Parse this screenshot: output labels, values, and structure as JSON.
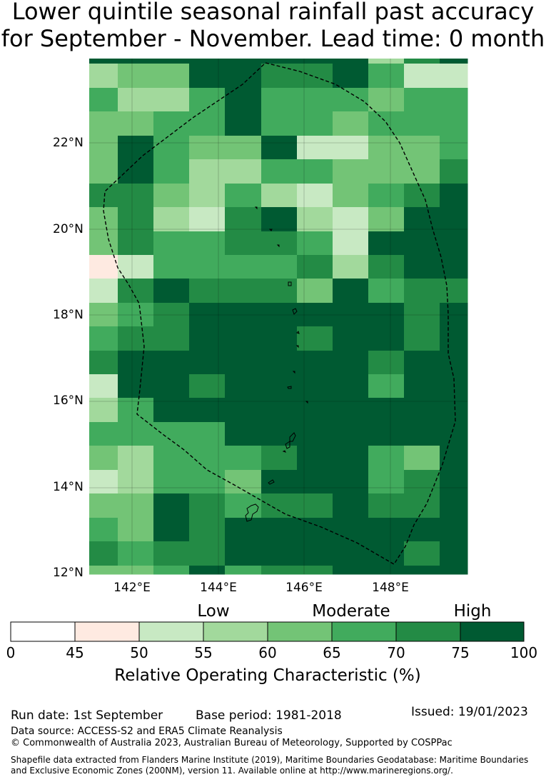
{
  "title": {
    "line1": "Lower quintile seasonal rainfall past accuracy",
    "line2": "for September - November. Lead time: 0 month"
  },
  "map": {
    "lon_range": [
      141.0,
      149.6
    ],
    "lat_range": [
      12.0,
      24.0
    ],
    "lat_ticks": [
      "22°N",
      "20°N",
      "18°N",
      "16°N",
      "14°N",
      "12°N"
    ],
    "lon_ticks": [
      "142°E",
      "144°E",
      "146°E",
      "148°E"
    ],
    "grid": true,
    "eez_boundary": "dashed"
  },
  "colorbar": {
    "categories": [
      "Low",
      "Moderate",
      "High"
    ],
    "ticks": [
      "0",
      "45",
      "50",
      "55",
      "60",
      "65",
      "70",
      "75",
      "100"
    ],
    "label": "Relative Operating Characteristic (%)",
    "colors": [
      "#ffffff",
      "#feeae1",
      "#c8e9c3",
      "#a2d99c",
      "#73c476",
      "#41ab5d",
      "#238b45",
      "#005a32"
    ]
  },
  "footer": {
    "run_date": "Run date: 1st September",
    "base_period": "Base period: 1981-2018",
    "issued": "Issued: 19/01/2023",
    "data_source": "Data source: ACCESS-S2 and ERA5 Climate Reanalysis",
    "copyright": "© Commonwealth of Australia 2023, Australian Bureau of Meteorology, Supported by COSPPac",
    "shapefile_line1": "Shapefile data extracted from Flanders Marine Institute (2019), Maritime Boundaries Geodatabase: Maritime Boundaries",
    "shapefile_line2": "and Exclusive Economic Zones (200NM), version 11. Available online at http://www.marineregions.org/."
  }
}
